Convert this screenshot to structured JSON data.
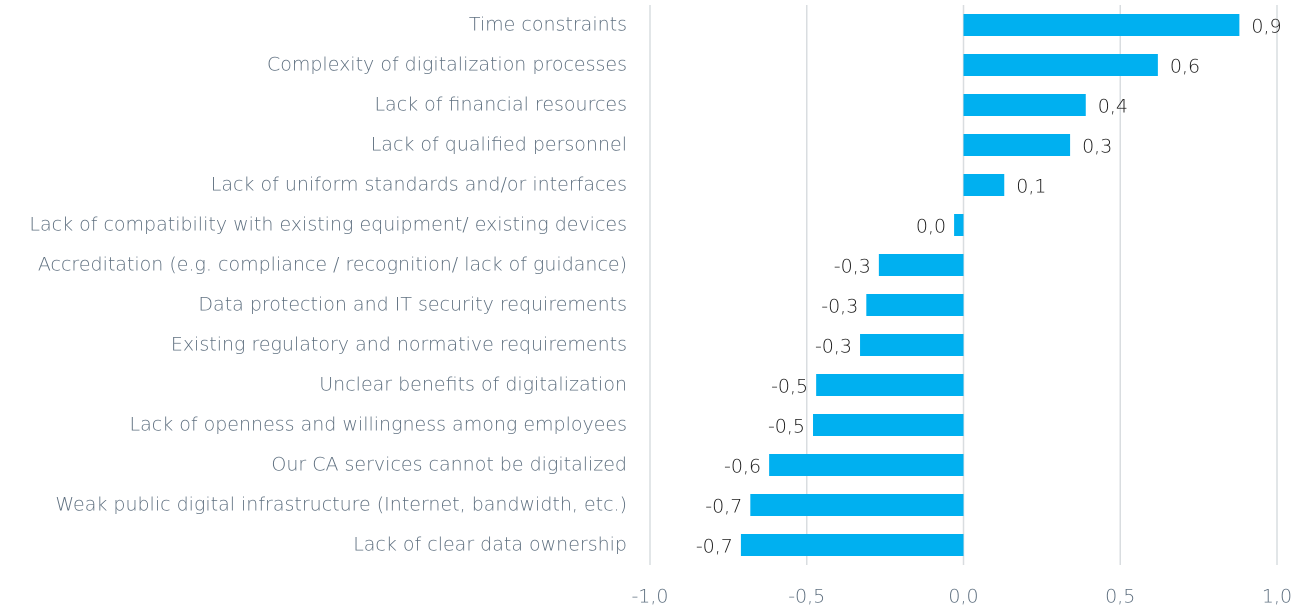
{
  "chart_data": {
    "type": "bar",
    "orientation": "horizontal",
    "categories": [
      "Time constraints",
      "Complexity of digitalization processes",
      "Lack of financial resources",
      "Lack of qualified personnel",
      "Lack of uniform standards and/or interfaces",
      "Lack of compatibility with existing equipment/ existing devices",
      "Accreditation (e.g. compliance / recognition/ lack of guidance)",
      "Data protection and IT security requirements",
      "Existing regulatory and normative requirements",
      "Unclear benefits of digitalization",
      "Lack of openness and willingness among employees",
      "Our CA services cannot be digitalized",
      "Weak public digital infrastructure (Internet, bandwidth, etc.)",
      "Lack of clear data ownership"
    ],
    "values": [
      0.88,
      0.62,
      0.39,
      0.34,
      0.13,
      -0.03,
      -0.27,
      -0.31,
      -0.33,
      -0.47,
      -0.48,
      -0.62,
      -0.68,
      -0.71
    ],
    "value_labels": [
      "0,9",
      "0,6",
      "0,4",
      "0,3",
      "0,1",
      "0,0",
      "-0,3",
      "-0,3",
      "-0,3",
      "-0,5",
      "-0,5",
      "-0,6",
      "-0,7",
      "-0,7"
    ],
    "color": "#00b0f0",
    "xlim": [
      -1,
      1
    ],
    "xticks": [
      {
        "value": -1,
        "label": "-1,0"
      },
      {
        "value": -0.5,
        "label": "-0,5"
      },
      {
        "value": 0,
        "label": "0,0"
      },
      {
        "value": 0.5,
        "label": "0,5"
      },
      {
        "value": 1,
        "label": "1,0"
      }
    ],
    "grid": true
  }
}
